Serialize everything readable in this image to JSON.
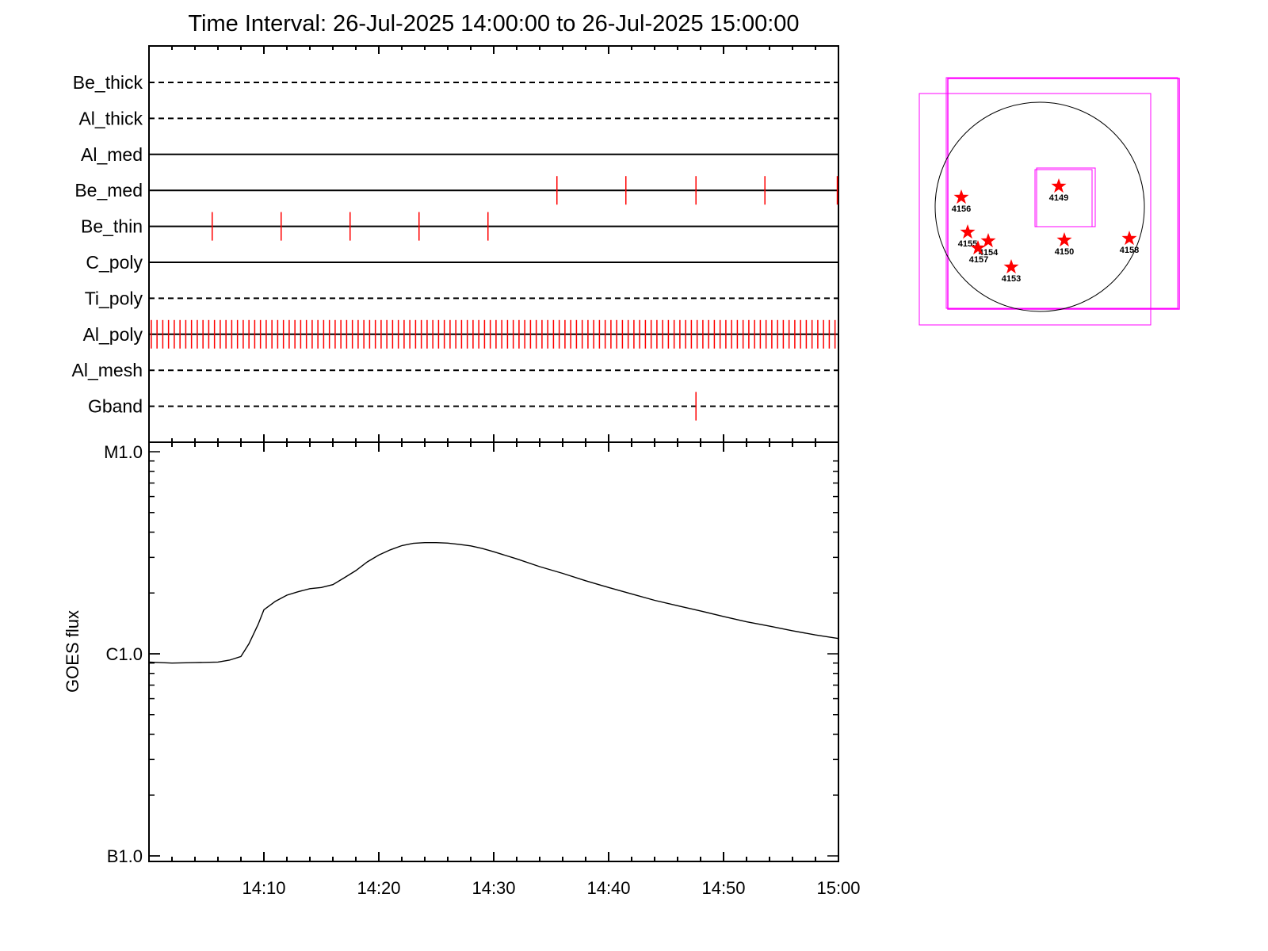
{
  "title": "Time Interval: 26-Jul-2025 14:00:00 to 26-Jul-2025 15:00:00",
  "colors": {
    "axis": "#000000",
    "event_tick": "#ff0000",
    "fov_box": "#ff00ff",
    "star": "#ff0000"
  },
  "chart_data": [
    {
      "type": "line",
      "title": "Time Interval: 26-Jul-2025 14:00:00 to 26-Jul-2025 15:00:00",
      "xlabel": "",
      "ylabel": "",
      "x_range_minutes": [
        0,
        60
      ],
      "channels": [
        {
          "name": "Be_thick",
          "style": "dashed",
          "events": []
        },
        {
          "name": "Al_thick",
          "style": "dashed",
          "events": []
        },
        {
          "name": "Al_med",
          "style": "solid",
          "events": []
        },
        {
          "name": "Be_med",
          "style": "solid",
          "events": [
            35.5,
            41.5,
            47.6,
            53.6,
            59.9
          ]
        },
        {
          "name": "Be_thin",
          "style": "solid",
          "events": [
            5.5,
            11.5,
            17.5,
            23.5,
            29.5
          ]
        },
        {
          "name": "C_poly",
          "style": "solid",
          "events": []
        },
        {
          "name": "Ti_poly",
          "style": "dashed",
          "events": []
        },
        {
          "name": "Al_poly",
          "style": "solid",
          "events": "every 0.5 min from 0.2 to 59.7"
        },
        {
          "name": "Al_mesh",
          "style": "dashed",
          "events": []
        },
        {
          "name": "Gband",
          "style": "dashed",
          "events": [
            47.6
          ]
        }
      ],
      "grid": false
    },
    {
      "type": "line",
      "ylabel": "GOES flux",
      "yscale": "log",
      "ylim": [
        1e-07,
        1e-05
      ],
      "y_ticks": [
        {
          "label": "B1.0",
          "value": 1e-07
        },
        {
          "label": "C1.0",
          "value": 1e-06
        },
        {
          "label": "M1.0",
          "value": 1e-05
        }
      ],
      "x_ticks": [
        "14:10",
        "14:20",
        "14:30",
        "14:40",
        "14:50",
        "15:00"
      ],
      "x_range_minutes": [
        0,
        60
      ],
      "series": [
        {
          "x": [
            0,
            2,
            4,
            6,
            7,
            8,
            8.7,
            9.5,
            10,
            11,
            12,
            13,
            14,
            15,
            16,
            17,
            18,
            19,
            20,
            21,
            22,
            23,
            24,
            25,
            26,
            27,
            28,
            29,
            30,
            32,
            34,
            36,
            38,
            40,
            42,
            44,
            46,
            48,
            50,
            52,
            54,
            56,
            58,
            60
          ],
          "y": [
            9.1e-07,
            9e-07,
            9.05e-07,
            9.1e-07,
            9.3e-07,
            9.7e-07,
            1.12e-06,
            1.4e-06,
            1.65e-06,
            1.82e-06,
            1.95e-06,
            2.03e-06,
            2.1e-06,
            2.13e-06,
            2.2e-06,
            2.38e-06,
            2.58e-06,
            2.85e-06,
            3.08e-06,
            3.27e-06,
            3.43e-06,
            3.52e-06,
            3.55e-06,
            3.55e-06,
            3.53e-06,
            3.48e-06,
            3.42e-06,
            3.32e-06,
            3.2e-06,
            2.95e-06,
            2.7e-06,
            2.5e-06,
            2.3e-06,
            2.13e-06,
            1.98e-06,
            1.84e-06,
            1.73e-06,
            1.63e-06,
            1.53e-06,
            1.44e-06,
            1.37e-06,
            1.3e-06,
            1.24e-06,
            1.19e-06
          ]
        }
      ],
      "grid": false
    }
  ],
  "sun_map": {
    "regions": [
      {
        "label": "4149"
      },
      {
        "label": "4156"
      },
      {
        "label": "4155"
      },
      {
        "label": "4154"
      },
      {
        "label": "4157"
      },
      {
        "label": "4150"
      },
      {
        "label": "4158"
      },
      {
        "label": "4153"
      }
    ]
  }
}
